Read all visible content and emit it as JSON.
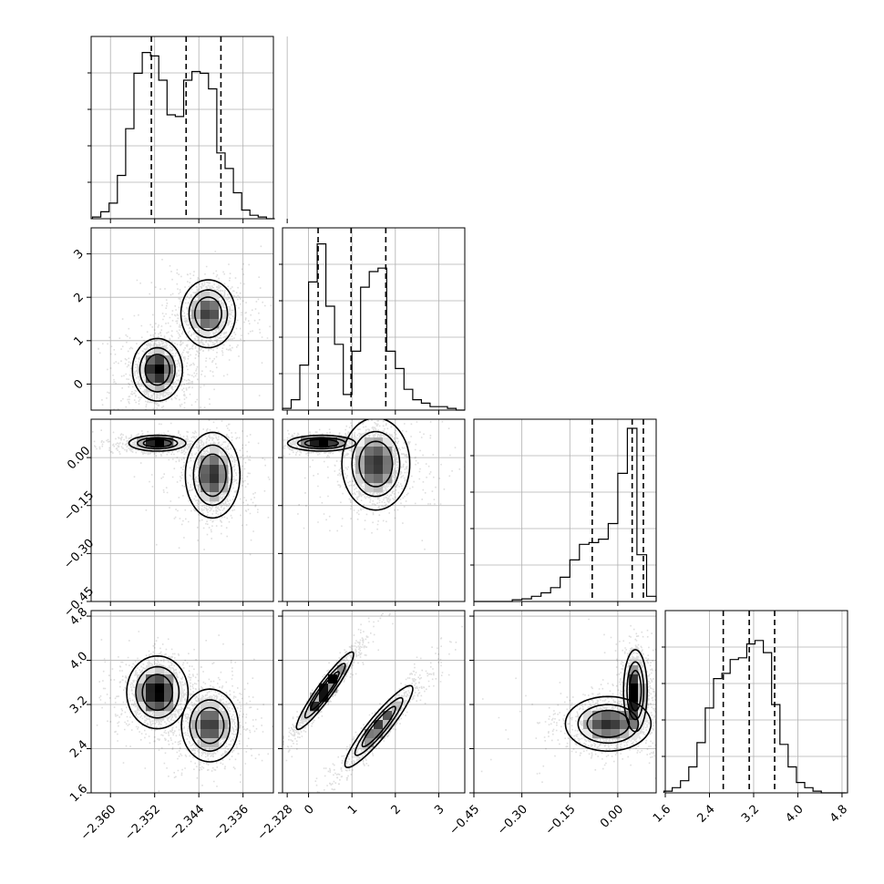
{
  "chart_data": {
    "type": "corner",
    "parameters": [
      {
        "key": "p0",
        "range": [
          -2.3635,
          -2.3305
        ],
        "ticks": [
          -2.36,
          -2.352,
          -2.344,
          -2.336,
          -2.328
        ],
        "tick_labels": [
          "−2.360",
          "−2.352",
          "−2.344",
          "−2.336",
          "−2.328"
        ],
        "quantiles": [
          -2.3526,
          -2.3463,
          -2.34
        ]
      },
      {
        "key": "p1",
        "range": [
          -0.6,
          3.6
        ],
        "ticks": [
          0,
          1,
          2,
          3
        ],
        "tick_labels": [
          "0",
          "1",
          "2",
          "3"
        ],
        "quantiles": [
          0.22,
          0.98,
          1.78
        ]
      },
      {
        "key": "p2",
        "range": [
          -0.45,
          0.12
        ],
        "ticks": [
          -0.45,
          -0.3,
          -0.15,
          0.0
        ],
        "tick_labels": [
          "−0.45",
          "−0.30",
          "−0.15",
          "0.00"
        ],
        "quantiles": [
          -0.08,
          0.045,
          0.08
        ]
      },
      {
        "key": "p3",
        "range": [
          1.6,
          4.9
        ],
        "ticks": [
          1.6,
          2.4,
          3.2,
          4.0,
          4.8
        ],
        "tick_labels": [
          "1.6",
          "2.4",
          "3.2",
          "4.0",
          "4.8"
        ],
        "quantiles": [
          2.65,
          3.12,
          3.58
        ]
      }
    ],
    "histograms": [
      {
        "param": 0,
        "x": [
          -2.3625,
          -2.361,
          -2.3595,
          -2.358,
          -2.3565,
          -2.355,
          -2.3535,
          -2.352,
          -2.3505,
          -2.349,
          -2.3475,
          -2.346,
          -2.3445,
          -2.343,
          -2.3415,
          -2.34,
          -2.3385,
          -2.337,
          -2.3355,
          -2.334,
          -2.3325,
          -2.331
        ],
        "counts": [
          0.01,
          0.04,
          0.09,
          0.25,
          0.52,
          0.84,
          0.96,
          0.94,
          0.8,
          0.6,
          0.59,
          0.8,
          0.85,
          0.84,
          0.75,
          0.38,
          0.29,
          0.15,
          0.05,
          0.02,
          0.01,
          0.0
        ]
      },
      {
        "param": 1,
        "x": [
          -0.5,
          -0.3,
          -0.1,
          0.1,
          0.3,
          0.5,
          0.7,
          0.9,
          1.1,
          1.3,
          1.5,
          1.7,
          1.9,
          2.1,
          2.3,
          2.5,
          2.7,
          2.9,
          3.1,
          3.3,
          3.5
        ],
        "counts": [
          0.01,
          0.06,
          0.26,
          0.74,
          0.96,
          0.6,
          0.38,
          0.09,
          0.34,
          0.71,
          0.8,
          0.82,
          0.34,
          0.24,
          0.12,
          0.06,
          0.04,
          0.02,
          0.02,
          0.01,
          0.0
        ]
      },
      {
        "param": 2,
        "x": [
          -0.435,
          -0.405,
          -0.375,
          -0.345,
          -0.315,
          -0.285,
          -0.255,
          -0.225,
          -0.195,
          -0.165,
          -0.135,
          -0.105,
          -0.075,
          -0.045,
          -0.015,
          0.015,
          0.045,
          0.075,
          0.105
        ],
        "counts": [
          0.0,
          0.0,
          0.0,
          0.0,
          0.01,
          0.015,
          0.03,
          0.05,
          0.08,
          0.14,
          0.24,
          0.33,
          0.34,
          0.36,
          0.45,
          0.74,
          1.0,
          0.27,
          0.03
        ]
      },
      {
        "param": 3,
        "x": [
          1.65,
          1.8,
          1.95,
          2.1,
          2.25,
          2.4,
          2.55,
          2.7,
          2.85,
          3.0,
          3.15,
          3.3,
          3.45,
          3.6,
          3.75,
          3.9,
          4.05,
          4.2,
          4.35,
          4.5,
          4.65,
          4.8
        ],
        "counts": [
          0.01,
          0.03,
          0.07,
          0.15,
          0.29,
          0.49,
          0.66,
          0.69,
          0.77,
          0.78,
          0.86,
          0.88,
          0.81,
          0.51,
          0.28,
          0.15,
          0.06,
          0.03,
          0.01,
          0.0,
          0.0,
          0.0
        ]
      }
    ],
    "panels_2d": [
      {
        "x": 0,
        "y": 1,
        "modes": [
          {
            "cx": -2.3515,
            "cy": 0.33,
            "sx": 0.0022,
            "sy": 0.35,
            "rho": 0.0,
            "w": 0.55
          },
          {
            "cx": -2.3423,
            "cy": 1.62,
            "sx": 0.0024,
            "sy": 0.38,
            "rho": 0.0,
            "w": 0.45
          }
        ]
      },
      {
        "x": 0,
        "y": 2,
        "modes": [
          {
            "cx": -2.3515,
            "cy": 0.045,
            "sx": 0.0025,
            "sy": 0.012,
            "rho": 0.0,
            "w": 0.55
          },
          {
            "cx": -2.3415,
            "cy": -0.055,
            "sx": 0.0024,
            "sy": 0.065,
            "rho": 0.0,
            "w": 0.45
          }
        ]
      },
      {
        "x": 0,
        "y": 3,
        "modes": [
          {
            "cx": -2.3515,
            "cy": 3.42,
            "sx": 0.0027,
            "sy": 0.32,
            "rho": 0.0,
            "w": 0.55
          },
          {
            "cx": -2.342,
            "cy": 2.82,
            "sx": 0.0025,
            "sy": 0.32,
            "rho": 0.0,
            "w": 0.45
          }
        ]
      },
      {
        "x": 1,
        "y": 2,
        "modes": [
          {
            "cx": 0.3,
            "cy": 0.045,
            "sx": 0.38,
            "sy": 0.012,
            "rho": 0.0,
            "w": 0.55
          },
          {
            "cx": 1.55,
            "cy": -0.02,
            "sx": 0.38,
            "sy": 0.07,
            "rho": 0.0,
            "w": 0.45
          }
        ]
      },
      {
        "x": 1,
        "y": 3,
        "modes": [
          {
            "cx": 0.38,
            "cy": 3.45,
            "sx": 0.32,
            "sy": 0.34,
            "rho": 0.94,
            "w": 0.55
          },
          {
            "cx": 1.62,
            "cy": 2.8,
            "sx": 0.38,
            "sy": 0.36,
            "rho": 0.92,
            "w": 0.45
          }
        ]
      },
      {
        "x": 2,
        "y": 3,
        "modes": [
          {
            "cx": 0.055,
            "cy": 3.45,
            "sx": 0.018,
            "sy": 0.36,
            "rho": 0.0,
            "w": 0.55
          },
          {
            "cx": -0.03,
            "cy": 2.85,
            "sx": 0.065,
            "sy": 0.24,
            "rho": 0.0,
            "w": 0.45
          }
        ]
      }
    ],
    "grid": true,
    "contour_levels": [
      0.12,
      0.35,
      0.6
    ]
  }
}
